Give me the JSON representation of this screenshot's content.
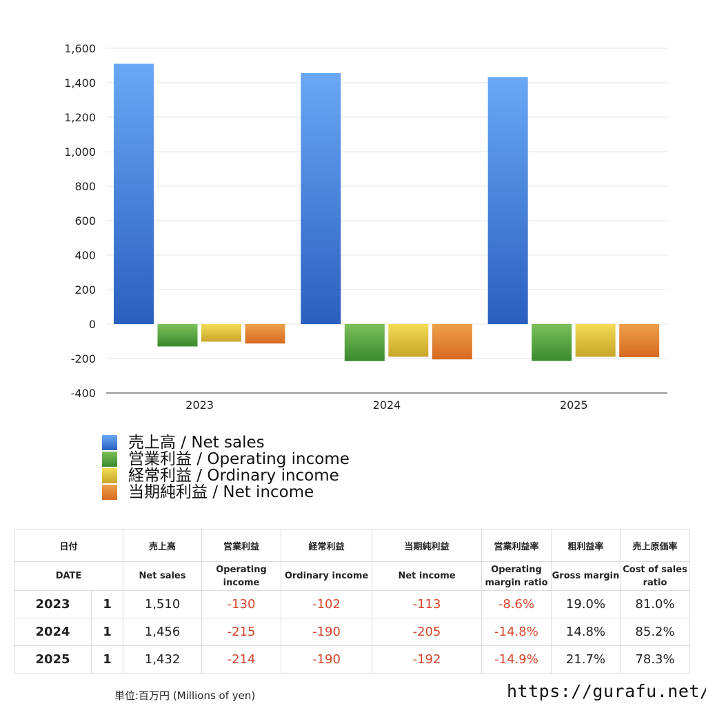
{
  "chart_data": {
    "type": "bar",
    "categories": [
      "2023",
      "2024",
      "2025"
    ],
    "series": [
      {
        "name": "売上高 / Net sales",
        "values": [
          1510,
          1456,
          1432
        ],
        "color": "#3f7fe0"
      },
      {
        "name": "営業利益 / Operating income",
        "values": [
          -130,
          -215,
          -214
        ],
        "color": "#4e9e3c"
      },
      {
        "name": "経常利益 / Ordinary income",
        "values": [
          -102,
          -190,
          -190
        ],
        "color": "#e3c23a"
      },
      {
        "name": "当期純利益 / Net income",
        "values": [
          -113,
          -205,
          -192
        ],
        "color": "#e07b2b"
      }
    ],
    "yticks": [
      "1,600",
      "1,400",
      "1,200",
      "1,000",
      "800",
      "600",
      "400",
      "200",
      "0",
      "-200",
      "-400"
    ],
    "ylim": [
      -400,
      1600
    ],
    "grid": true,
    "legend_position": "bottom-left"
  },
  "table": {
    "headers_jp": [
      "日付",
      "売上高",
      "営業利益",
      "経常利益",
      "当期純利益",
      "営業利益率",
      "粗利益率",
      "売上原価率"
    ],
    "headers_en": [
      "DATE",
      "Net sales",
      "Operating income",
      "Ordinary income",
      "Net income",
      "Operating margin ratio",
      "Gross margin",
      "Cost of sales ratio"
    ],
    "rows": [
      {
        "year": "2023",
        "month": "1",
        "net_sales": "1,510",
        "operating_income": "-130",
        "ordinary_income": "-102",
        "net_income": "-113",
        "operating_margin": "-8.6%",
        "gross_margin": "19.0%",
        "cost_ratio": "81.0%"
      },
      {
        "year": "2024",
        "month": "1",
        "net_sales": "1,456",
        "operating_income": "-215",
        "ordinary_income": "-190",
        "net_income": "-205",
        "operating_margin": "-14.8%",
        "gross_margin": "14.8%",
        "cost_ratio": "85.2%"
      },
      {
        "year": "2025",
        "month": "1",
        "net_sales": "1,432",
        "operating_income": "-214",
        "ordinary_income": "-190",
        "net_income": "-192",
        "operating_margin": "-14.9%",
        "gross_margin": "21.7%",
        "cost_ratio": "78.3%"
      }
    ]
  },
  "footer": {
    "unit": "単位:百万円 (Millions of yen)",
    "url": "https://gurafu.net/"
  }
}
